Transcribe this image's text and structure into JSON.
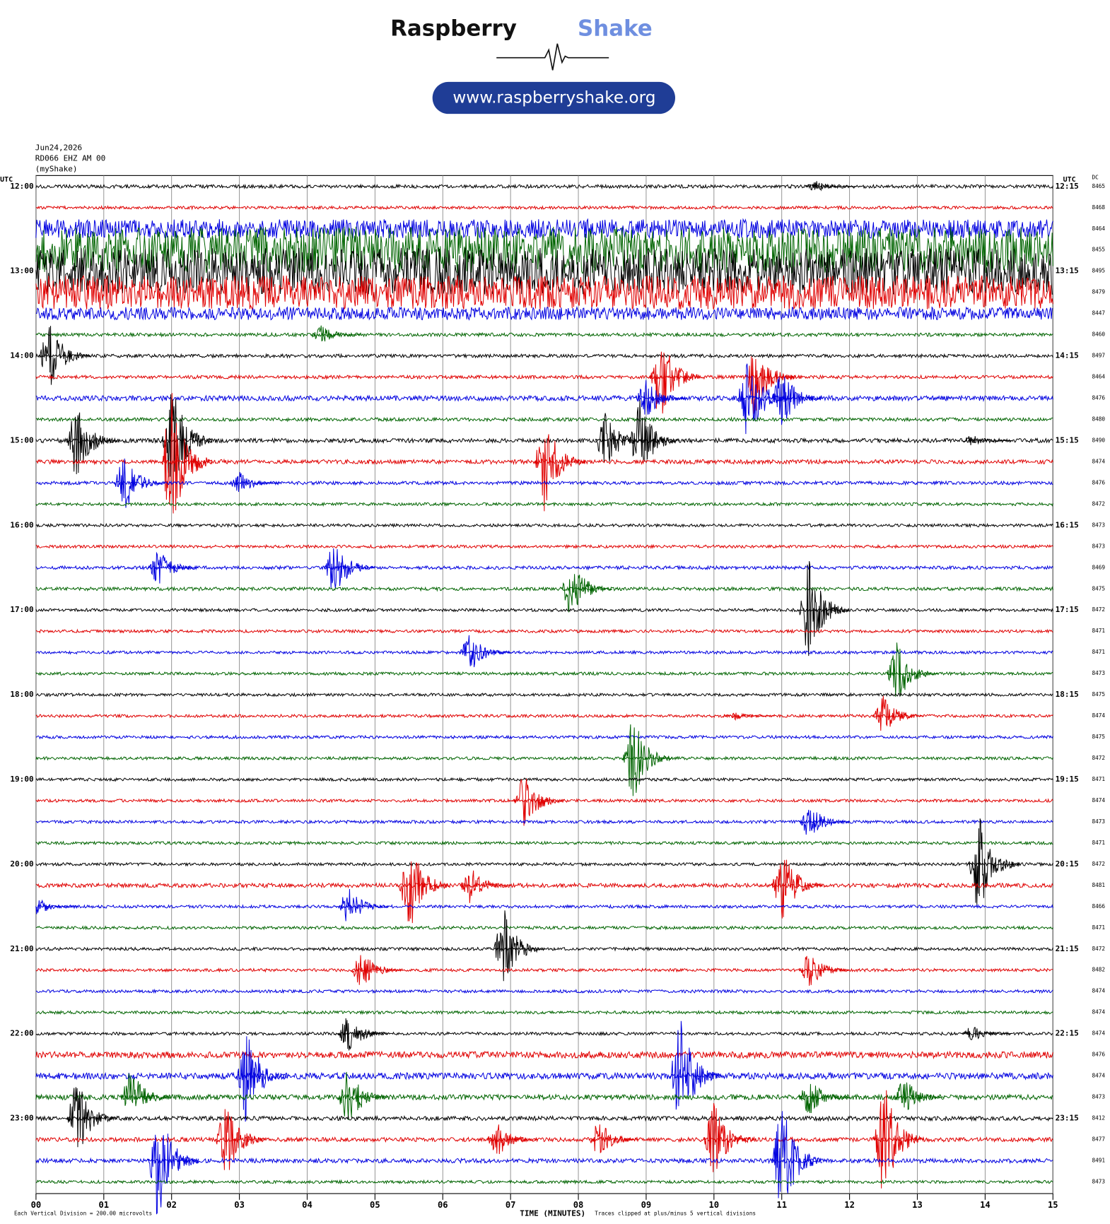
{
  "header": {
    "brand_1": "Raspberry",
    "brand_2": "Shake",
    "url": "www.raspberryshake.org"
  },
  "chart_data": {
    "type": "helicorder",
    "info": [
      "Jun24,2026",
      "RD066 EHZ AM 00",
      "(myShake)"
    ],
    "left_axis_title": "UTC",
    "right_axis_title": "UTC",
    "dc_title": "DC",
    "xlabel": "TIME (MINUTES)",
    "scale_note": "Each Vertical Division =  200.00 microvolts",
    "clip_note": "Traces clipped at plus/minus 5 vertical divisions",
    "xlim": [
      0,
      15
    ],
    "xticks": [
      {
        "value": 0,
        "label": "00"
      },
      {
        "value": 1,
        "label": "01"
      },
      {
        "value": 2,
        "label": "02"
      },
      {
        "value": 3,
        "label": "03"
      },
      {
        "value": 4,
        "label": "04"
      },
      {
        "value": 5,
        "label": "05"
      },
      {
        "value": 6,
        "label": "06"
      },
      {
        "value": 7,
        "label": "07"
      },
      {
        "value": 8,
        "label": "08"
      },
      {
        "value": 9,
        "label": "09"
      },
      {
        "value": 10,
        "label": "10"
      },
      {
        "value": 11,
        "label": "11"
      },
      {
        "value": 12,
        "label": "12"
      },
      {
        "value": 13,
        "label": "13"
      },
      {
        "value": 14,
        "label": "14"
      },
      {
        "value": 15,
        "label": "15"
      }
    ],
    "clip": 5,
    "traces": [
      {
        "label": "12:00",
        "right_label": "12:15",
        "dc": "8465",
        "color": "#000000",
        "noise": 0.08,
        "events": [
          [
            11.5,
            0.3
          ]
        ]
      },
      {
        "label": null,
        "right_label": null,
        "dc": "8468",
        "color": "#e00000",
        "noise": 0.07,
        "events": []
      },
      {
        "label": null,
        "right_label": null,
        "dc": "8464",
        "color": "#0000e0",
        "noise": 0.45,
        "events": []
      },
      {
        "label": null,
        "right_label": null,
        "dc": "8455",
        "color": "#006400",
        "noise": 1.1,
        "events": []
      },
      {
        "label": "13:00",
        "right_label": "13:15",
        "dc": "8495",
        "color": "#000000",
        "noise": 1.1,
        "events": []
      },
      {
        "label": null,
        "right_label": null,
        "dc": "8479",
        "color": "#e00000",
        "noise": 0.8,
        "events": []
      },
      {
        "label": null,
        "right_label": null,
        "dc": "8447",
        "color": "#0000e0",
        "noise": 0.3,
        "events": []
      },
      {
        "label": null,
        "right_label": null,
        "dc": "8460",
        "color": "#006400",
        "noise": 0.08,
        "events": [
          [
            4.2,
            0.5
          ]
        ]
      },
      {
        "label": "14:00",
        "right_label": "14:15",
        "dc": "8497",
        "color": "#000000",
        "noise": 0.08,
        "events": [
          [
            0.2,
            1.8
          ]
        ]
      },
      {
        "label": null,
        "right_label": null,
        "dc": "8464",
        "color": "#e00000",
        "noise": 0.08,
        "events": [
          [
            9.2,
            2.5
          ],
          [
            10.6,
            2
          ]
        ]
      },
      {
        "label": null,
        "right_label": null,
        "dc": "8476",
        "color": "#0000e0",
        "noise": 0.12,
        "events": [
          [
            9.0,
            1
          ],
          [
            10.5,
            2.5
          ],
          [
            11.0,
            1.5
          ]
        ]
      },
      {
        "label": null,
        "right_label": null,
        "dc": "8480",
        "color": "#006400",
        "noise": 0.08,
        "events": []
      },
      {
        "label": "15:00",
        "right_label": "15:15",
        "dc": "8490",
        "color": "#000000",
        "noise": 0.1,
        "events": [
          [
            0.6,
            2
          ],
          [
            2.0,
            3
          ],
          [
            8.4,
            1.5
          ],
          [
            8.9,
            2
          ],
          [
            13.8,
            0.3
          ]
        ]
      },
      {
        "label": null,
        "right_label": null,
        "dc": "8474",
        "color": "#e00000",
        "noise": 0.1,
        "events": [
          [
            2.0,
            4
          ],
          [
            7.5,
            2.5
          ]
        ]
      },
      {
        "label": null,
        "right_label": null,
        "dc": "8476",
        "color": "#0000e0",
        "noise": 0.08,
        "events": [
          [
            1.3,
            1.5
          ],
          [
            3.0,
            0.6
          ]
        ]
      },
      {
        "label": null,
        "right_label": null,
        "dc": "8472",
        "color": "#006400",
        "noise": 0.07,
        "events": []
      },
      {
        "label": "16:00",
        "right_label": "16:15",
        "dc": "8473",
        "color": "#000000",
        "noise": 0.07,
        "events": []
      },
      {
        "label": null,
        "right_label": null,
        "dc": "8473",
        "color": "#e00000",
        "noise": 0.07,
        "events": []
      },
      {
        "label": null,
        "right_label": null,
        "dc": "8469",
        "color": "#0000e0",
        "noise": 0.08,
        "events": [
          [
            1.8,
            1
          ],
          [
            4.4,
            1.5
          ]
        ]
      },
      {
        "label": null,
        "right_label": null,
        "dc": "8475",
        "color": "#006400",
        "noise": 0.08,
        "events": [
          [
            7.9,
            1.5
          ]
        ]
      },
      {
        "label": "17:00",
        "right_label": "17:15",
        "dc": "8472",
        "color": "#000000",
        "noise": 0.07,
        "events": [
          [
            11.4,
            2.5
          ]
        ]
      },
      {
        "label": null,
        "right_label": null,
        "dc": "8471",
        "color": "#e00000",
        "noise": 0.07,
        "events": []
      },
      {
        "label": null,
        "right_label": null,
        "dc": "8471",
        "color": "#0000e0",
        "noise": 0.07,
        "events": [
          [
            6.4,
            1
          ]
        ]
      },
      {
        "label": null,
        "right_label": null,
        "dc": "8473",
        "color": "#006400",
        "noise": 0.07,
        "events": [
          [
            12.7,
            1.5
          ]
        ]
      },
      {
        "label": "18:00",
        "right_label": "18:15",
        "dc": "8475",
        "color": "#000000",
        "noise": 0.07,
        "events": []
      },
      {
        "label": null,
        "right_label": null,
        "dc": "8474",
        "color": "#e00000",
        "noise": 0.07,
        "events": [
          [
            10.3,
            0.2
          ],
          [
            12.5,
            1
          ]
        ]
      },
      {
        "label": null,
        "right_label": null,
        "dc": "8475",
        "color": "#0000e0",
        "noise": 0.07,
        "events": []
      },
      {
        "label": null,
        "right_label": null,
        "dc": "8472",
        "color": "#006400",
        "noise": 0.07,
        "events": [
          [
            8.8,
            2.2
          ]
        ]
      },
      {
        "label": "19:00",
        "right_label": "19:15",
        "dc": "8471",
        "color": "#000000",
        "noise": 0.07,
        "events": []
      },
      {
        "label": null,
        "right_label": null,
        "dc": "8474",
        "color": "#e00000",
        "noise": 0.07,
        "events": [
          [
            7.2,
            1.5
          ]
        ]
      },
      {
        "label": null,
        "right_label": null,
        "dc": "8473",
        "color": "#0000e0",
        "noise": 0.07,
        "events": [
          [
            11.4,
            1
          ]
        ]
      },
      {
        "label": null,
        "right_label": null,
        "dc": "8471",
        "color": "#006400",
        "noise": 0.07,
        "events": []
      },
      {
        "label": "20:00",
        "right_label": "20:15",
        "dc": "8472",
        "color": "#000000",
        "noise": 0.07,
        "events": [
          [
            13.9,
            2.5
          ]
        ]
      },
      {
        "label": null,
        "right_label": null,
        "dc": "8481",
        "color": "#e00000",
        "noise": 0.1,
        "events": [
          [
            5.5,
            2.5
          ],
          [
            6.4,
            1
          ],
          [
            11.0,
            2
          ]
        ]
      },
      {
        "label": null,
        "right_label": null,
        "dc": "8466",
        "color": "#0000e0",
        "noise": 0.07,
        "events": [
          [
            0,
            0.5
          ],
          [
            4.6,
            1
          ]
        ]
      },
      {
        "label": null,
        "right_label": null,
        "dc": "8471",
        "color": "#006400",
        "noise": 0.07,
        "events": []
      },
      {
        "label": "21:00",
        "right_label": "21:15",
        "dc": "8472",
        "color": "#000000",
        "noise": 0.07,
        "events": [
          [
            6.9,
            2
          ]
        ]
      },
      {
        "label": null,
        "right_label": null,
        "dc": "8482",
        "color": "#e00000",
        "noise": 0.07,
        "events": [
          [
            4.8,
            1
          ],
          [
            11.4,
            1
          ]
        ]
      },
      {
        "label": null,
        "right_label": null,
        "dc": "8474",
        "color": "#0000e0",
        "noise": 0.07,
        "events": []
      },
      {
        "label": null,
        "right_label": null,
        "dc": "8474",
        "color": "#006400",
        "noise": 0.07,
        "events": []
      },
      {
        "label": "22:00",
        "right_label": "22:15",
        "dc": "8474",
        "color": "#000000",
        "noise": 0.07,
        "events": [
          [
            4.6,
            1
          ],
          [
            13.8,
            0.4
          ]
        ]
      },
      {
        "label": null,
        "right_label": null,
        "dc": "8476",
        "color": "#e00000",
        "noise": 0.15,
        "events": []
      },
      {
        "label": null,
        "right_label": null,
        "dc": "8474",
        "color": "#0000e0",
        "noise": 0.15,
        "events": [
          [
            3.1,
            2.5
          ],
          [
            9.5,
            3
          ]
        ]
      },
      {
        "label": null,
        "right_label": null,
        "dc": "8473",
        "color": "#006400",
        "noise": 0.12,
        "events": [
          [
            1.4,
            1.5
          ],
          [
            4.6,
            1.5
          ],
          [
            11.4,
            1
          ],
          [
            12.8,
            1
          ]
        ]
      },
      {
        "label": "23:00",
        "right_label": "23:15",
        "dc": "8412",
        "color": "#000000",
        "noise": 0.1,
        "events": [
          [
            0.6,
            2
          ]
        ]
      },
      {
        "label": null,
        "right_label": null,
        "dc": "8477",
        "color": "#e00000",
        "noise": 0.1,
        "events": [
          [
            2.8,
            2
          ],
          [
            6.8,
            1
          ],
          [
            8.3,
            1
          ],
          [
            10.0,
            2
          ],
          [
            12.5,
            3
          ]
        ]
      },
      {
        "label": null,
        "right_label": null,
        "dc": "8491",
        "color": "#0000e0",
        "noise": 0.1,
        "events": [
          [
            1.8,
            3
          ],
          [
            11.0,
            3
          ]
        ]
      },
      {
        "label": null,
        "right_label": null,
        "dc": "8473",
        "color": "#006400",
        "noise": 0.07,
        "events": []
      }
    ]
  }
}
